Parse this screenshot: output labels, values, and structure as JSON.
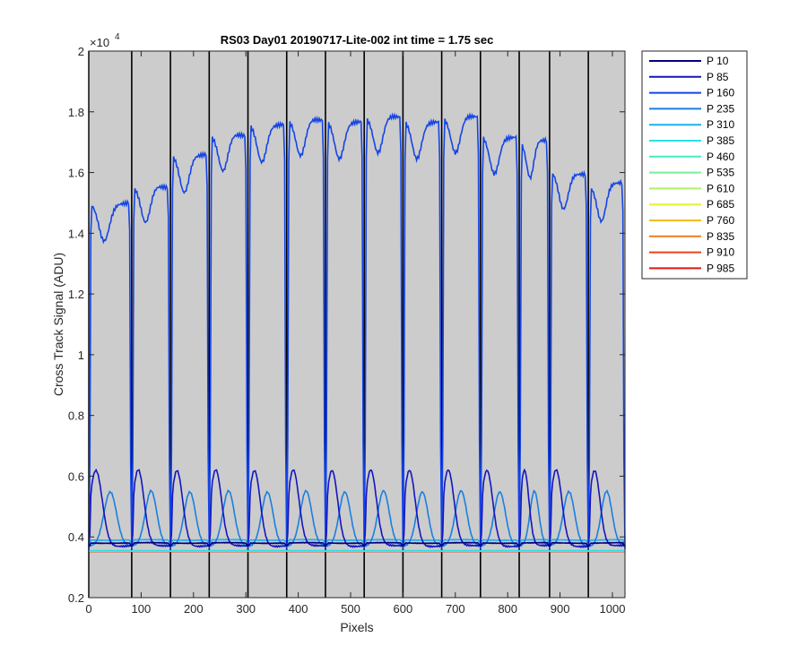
{
  "chart_data": {
    "type": "line",
    "title": "RS03 Day01 20190717-Lite-002 int time = 1.75 sec",
    "xlabel": "Pixels",
    "ylabel": "Cross Track Signal (ADU)",
    "y_exponent_label": "×10",
    "y_exponent_power": "4",
    "xlim": [
      0,
      1024
    ],
    "ylim": [
      0.2,
      2.0
    ],
    "x_ticks": [
      0,
      100,
      200,
      300,
      400,
      500,
      600,
      700,
      800,
      900,
      1000
    ],
    "x_tick_labels": [
      "0",
      "100",
      "200",
      "300",
      "400",
      "500",
      "600",
      "700",
      "800",
      "900",
      "1000"
    ],
    "y_ticks": [
      0.2,
      0.4,
      0.6,
      0.8,
      1.0,
      1.2,
      1.4,
      1.6,
      1.8,
      2.0
    ],
    "y_tick_labels": [
      "0.2",
      "0.4",
      "0.6",
      "0.8",
      "1",
      "1.2",
      "1.4",
      "1.6",
      "1.8",
      "2"
    ],
    "background": "#cccccc",
    "grid": false,
    "legend_position": "outside-right-top",
    "vertical_lines": [
      0,
      82,
      156,
      230,
      304,
      378,
      452,
      526,
      600,
      674,
      748,
      822,
      880,
      954
    ],
    "segments": [
      {
        "start": 2,
        "end": 80,
        "level": 1.5,
        "shape": "dip"
      },
      {
        "start": 84,
        "end": 154,
        "level": 1.55,
        "shape": "dip"
      },
      {
        "start": 158,
        "end": 228,
        "level": 1.66,
        "shape": "dip"
      },
      {
        "start": 232,
        "end": 302,
        "level": 1.72,
        "shape": "dip"
      },
      {
        "start": 306,
        "end": 376,
        "level": 1.76,
        "shape": "dip"
      },
      {
        "start": 380,
        "end": 450,
        "level": 1.77,
        "shape": "dip"
      },
      {
        "start": 454,
        "end": 524,
        "level": 1.77,
        "shape": "dip"
      },
      {
        "start": 528,
        "end": 598,
        "level": 1.78,
        "shape": "dip"
      },
      {
        "start": 602,
        "end": 672,
        "level": 1.77,
        "shape": "dip"
      },
      {
        "start": 676,
        "end": 746,
        "level": 1.78,
        "shape": "dip"
      },
      {
        "start": 750,
        "end": 820,
        "level": 1.72,
        "shape": "dip"
      },
      {
        "start": 824,
        "end": 878,
        "level": 1.7,
        "shape": "dip"
      },
      {
        "start": 882,
        "end": 952,
        "level": 1.6,
        "shape": "dip"
      },
      {
        "start": 956,
        "end": 1022,
        "level": 1.56,
        "shape": "dip"
      }
    ],
    "series": [
      {
        "name": "P 10",
        "color": "#00007f",
        "baseline": 0.37,
        "amplitude": 0.01
      },
      {
        "name": "P 85",
        "color": "#1515bf",
        "baseline": 0.37,
        "amplitude": 0.25
      },
      {
        "name": "P 160",
        "color": "#1545e6",
        "baseline": 0.36,
        "amplitude": 1.38
      },
      {
        "name": "P 235",
        "color": "#1a7fe0",
        "baseline": 0.37,
        "amplitude": 0.18
      },
      {
        "name": "P 310",
        "color": "#1fb0ee",
        "baseline": 0.38,
        "amplitude": 0.01
      },
      {
        "name": "P 385",
        "color": "#29e0e8",
        "baseline": 0.355,
        "amplitude": 0
      },
      {
        "name": "P 460",
        "color": "#45ecc2",
        "baseline": 0.353,
        "amplitude": 0
      },
      {
        "name": "P 535",
        "color": "#78ee9a",
        "baseline": 0.353,
        "amplitude": 0
      },
      {
        "name": "P 610",
        "color": "#aef06a",
        "baseline": 0.353,
        "amplitude": 0
      },
      {
        "name": "P 685",
        "color": "#e6f036",
        "baseline": 0.353,
        "amplitude": 0
      },
      {
        "name": "P 760",
        "color": "#f2bc22",
        "baseline": 0.353,
        "amplitude": 0
      },
      {
        "name": "P 835",
        "color": "#f07c1e",
        "baseline": 0.353,
        "amplitude": 0
      },
      {
        "name": "P 910",
        "color": "#ec4318",
        "baseline": 0.352,
        "amplitude": 0
      },
      {
        "name": "P 985",
        "color": "#e01414",
        "baseline": 0.352,
        "amplitude": 0
      }
    ]
  }
}
